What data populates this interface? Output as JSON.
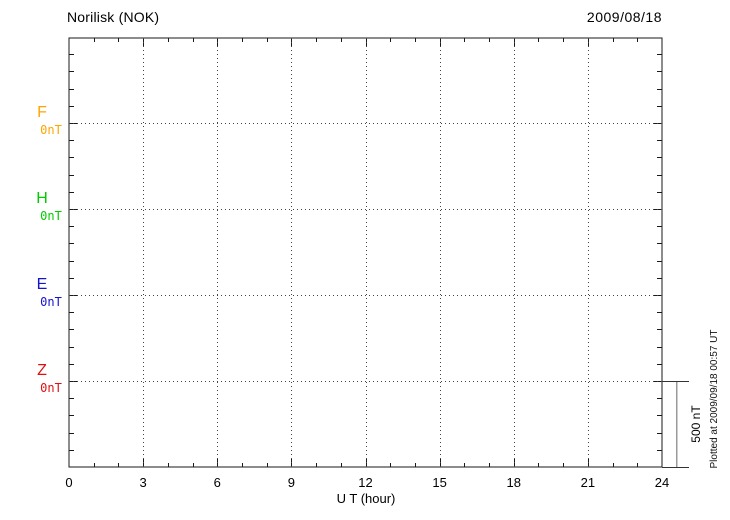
{
  "header": {
    "title": "Norilisk (NOK)",
    "date": "2009/08/18"
  },
  "x_axis": {
    "label": "U T (hour)",
    "tick_labels": [
      "0",
      "3",
      "6",
      "9",
      "12",
      "15",
      "18",
      "21",
      "24"
    ],
    "min_hour": 0,
    "max_hour": 24
  },
  "scale_bar": {
    "label": "500 nT"
  },
  "footer_note": "Plotted at 2009/09/18 00:57 UT",
  "chart_data": {
    "type": "line",
    "title": "Norilisk (NOK)",
    "subtitle": "2009/08/18",
    "xlabel": "U T (hour)",
    "x_range_hours": [
      0,
      24
    ],
    "x_major_ticks": [
      0,
      3,
      6,
      9,
      12,
      15,
      18,
      21,
      24
    ],
    "x_minor_tick_interval_hours": 1,
    "y_scale_bar_nT": 500,
    "y_minor_tick_nT": 100,
    "grid": "dotted vertical lines every 3 hours; dotted horizontal line at each component baseline",
    "series": [
      {
        "name": "F",
        "baseline_label": "0nT",
        "color": "#FFA500",
        "baseline_nT": 0,
        "values": []
      },
      {
        "name": "H",
        "baseline_label": "0nT",
        "color": "#00CC00",
        "baseline_nT": 0,
        "values": []
      },
      {
        "name": "E",
        "baseline_label": "0nT",
        "color": "#1414CC",
        "baseline_nT": 0,
        "values": []
      },
      {
        "name": "Z",
        "baseline_label": "0nT",
        "color": "#DD1111",
        "baseline_nT": 0,
        "values": []
      }
    ],
    "note": "No data traces plotted (empty magnetogram grid)"
  }
}
